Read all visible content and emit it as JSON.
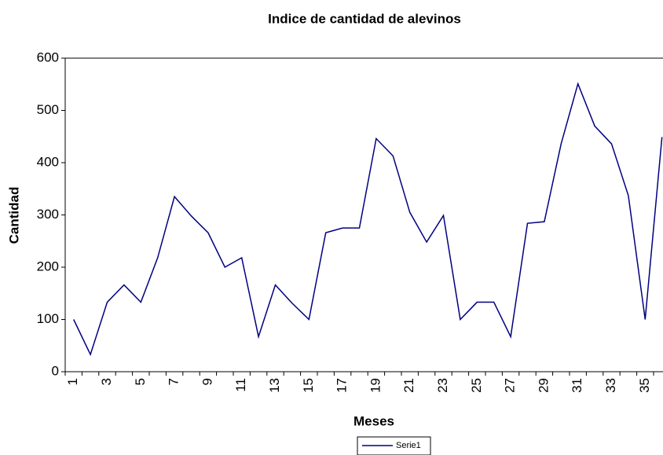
{
  "chart_data": {
    "type": "line",
    "title": "Indice de cantidad de alevinos",
    "x_label": "Meses",
    "y_label": "Cantidad",
    "categories": [
      "1",
      null,
      "3",
      null,
      "5",
      null,
      "7",
      null,
      "9",
      null,
      "11",
      null,
      "13",
      null,
      "15",
      null,
      "17",
      null,
      "19",
      null,
      "21",
      null,
      "23",
      null,
      "25",
      null,
      "27",
      null,
      "29",
      null,
      "31",
      null,
      "33",
      null,
      "35",
      null
    ],
    "series": [
      {
        "name": "Serie1",
        "color": "#000080",
        "values": [
          100,
          33,
          133,
          166,
          133,
          218,
          335,
          298,
          266,
          200,
          218,
          67,
          166,
          131,
          100,
          266,
          275,
          275,
          446,
          413,
          305,
          248,
          299,
          100,
          133,
          133,
          67,
          284,
          287,
          436,
          551,
          470,
          436,
          337,
          100,
          449
        ]
      }
    ],
    "ylim": [
      0,
      600
    ],
    "yticks": [
      0,
      100,
      200,
      300,
      400,
      500,
      600
    ],
    "grid": false,
    "legend": "bottom"
  }
}
